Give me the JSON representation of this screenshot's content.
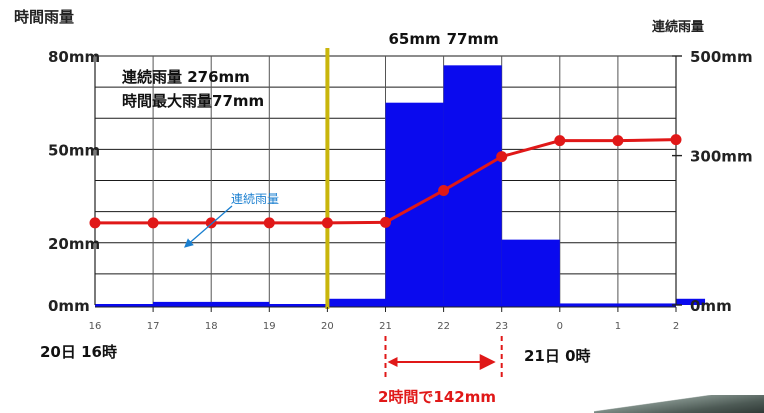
{
  "chart_data": {
    "type": "bar+line",
    "left_axis_title": "時間雨量",
    "right_axis_title": "連続雨量",
    "left_ticks": [
      "0mm",
      "20mm",
      "50mm",
      "80mm"
    ],
    "left_tick_values": [
      0,
      20,
      50,
      80
    ],
    "right_ticks": [
      "0mm",
      "300mm",
      "500mm"
    ],
    "right_tick_values": [
      0,
      300,
      500
    ],
    "ylim_left": [
      0,
      80
    ],
    "ylim_right": [
      0,
      500
    ],
    "x_ticks": [
      "16",
      "17",
      "18",
      "19",
      "20",
      "21",
      "22",
      "23",
      "0",
      "1",
      "2"
    ],
    "x_start_label": "20日 16時",
    "x_end_label": "21日 0時",
    "bar_colors": "#0a0aee",
    "line_color": "#e01818",
    "marker_line_color": "#c9b60c",
    "bars": [
      {
        "start": 16,
        "end": 17,
        "value": 0
      },
      {
        "start": 17,
        "end": 18,
        "value": 1
      },
      {
        "start": 18,
        "end": 19,
        "value": 1
      },
      {
        "start": 19,
        "end": 20,
        "value": 0
      },
      {
        "start": 20,
        "end": 21,
        "value": 2
      },
      {
        "start": 21,
        "end": 22,
        "value": 65
      },
      {
        "start": 22,
        "end": 23,
        "value": 77
      },
      {
        "start": 23,
        "end": 24,
        "value": 21
      },
      {
        "start": 24,
        "end": 25,
        "value": 0.5
      },
      {
        "start": 25,
        "end": 26,
        "value": 0.5
      },
      {
        "start": 26,
        "end": 26.5,
        "value": 2
      }
    ],
    "bar_labels": [
      {
        "text": "65mm",
        "at": 21.5
      },
      {
        "text": "77mm",
        "at": 22.5
      }
    ],
    "series": [
      {
        "name": "連続雨量",
        "axis": "right",
        "x": [
          16,
          17,
          18,
          19,
          20,
          21,
          22,
          23,
          24,
          25,
          26
        ],
        "values": [
          165,
          165,
          165,
          165,
          165,
          166,
          230,
          298,
          330,
          330,
          332
        ]
      }
    ],
    "marker_x": 20,
    "info_box": [
      "連続雨量 276mm",
      "時間最大雨量77mm"
    ],
    "callout": "連続雨量",
    "span_annotation": {
      "text": "2時間で142mm",
      "from": 21,
      "to": 23,
      "color": "#e01818"
    }
  }
}
